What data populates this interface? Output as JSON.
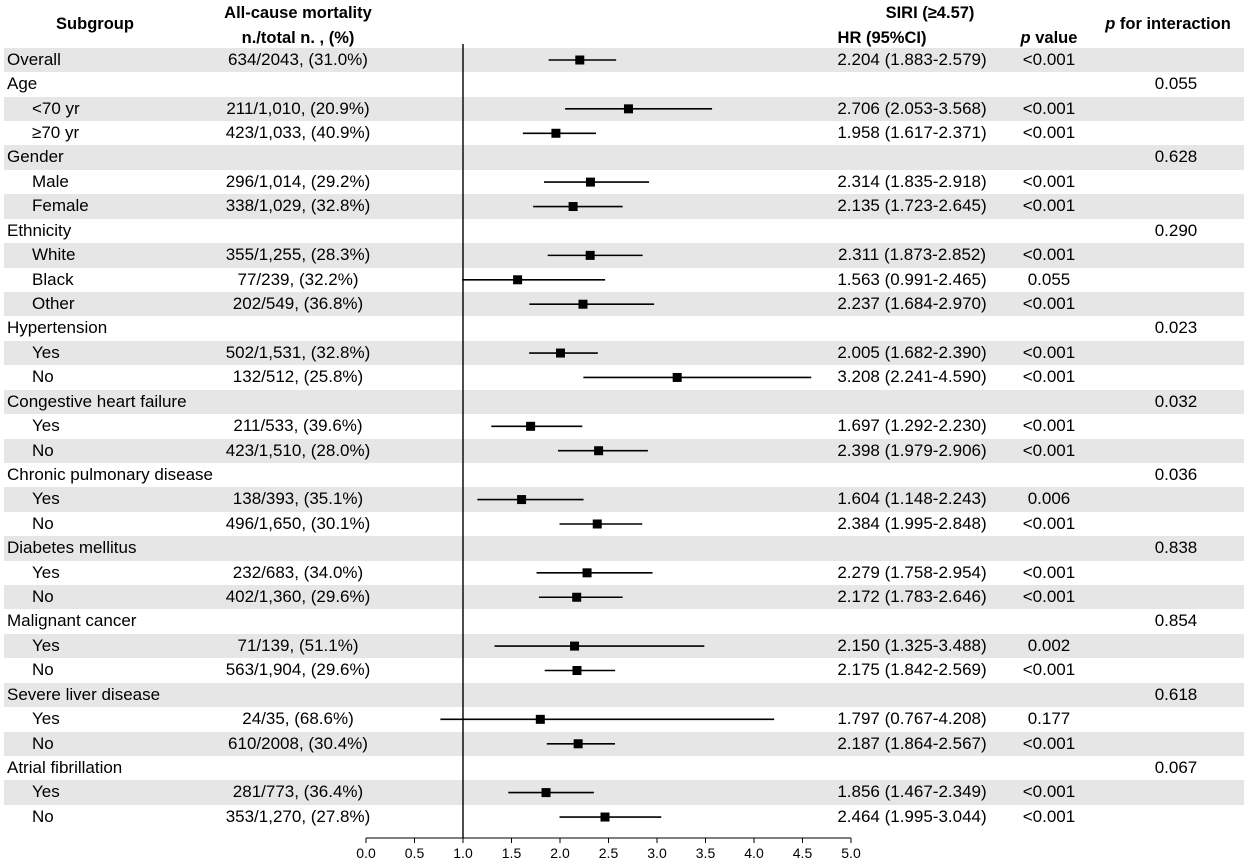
{
  "header": {
    "subgroup": "Subgroup",
    "mortality_title": "All-cause mortality",
    "mortality_subtitle": "n./total n. , (%)",
    "exposure": "SIRI (≥4.57)",
    "hr": "HR (95%CI)",
    "p_symbol": "p",
    "p_value_label": "value",
    "p_interaction_symbol": "p",
    "p_interaction_label": "for interaction"
  },
  "colors": {
    "row_shading": "#e6e6e6",
    "marker": "#000000"
  },
  "chart_data": {
    "type": "scatter",
    "xlim": [
      0,
      5
    ],
    "reference_line": 1.0,
    "x_ticks": [
      "0.0",
      "0.5",
      "1.0",
      "1.5",
      "2.0",
      "2.5",
      "3.0",
      "3.5",
      "4.0",
      "4.5",
      "5.0"
    ],
    "overall": {
      "label": "Overall",
      "events": "634/2043, (31.0%)",
      "hr": 2.204,
      "ci_low": 1.883,
      "ci_high": 2.579,
      "hr_text": "2.204 (1.883-2.579)",
      "p": "<0.001"
    },
    "groups": [
      {
        "label": "Age",
        "p_interaction": "0.055",
        "subgroups": [
          {
            "label": "<70 yr",
            "events": "211/1,010, (20.9%)",
            "hr": 2.706,
            "ci_low": 2.053,
            "ci_high": 3.568,
            "hr_text": "2.706 (2.053-3.568)",
            "p": "<0.001"
          },
          {
            "label": "≥70 yr",
            "events": "423/1,033, (40.9%)",
            "hr": 1.958,
            "ci_low": 1.617,
            "ci_high": 2.371,
            "hr_text": "1.958 (1.617-2.371)",
            "p": "<0.001"
          }
        ]
      },
      {
        "label": "Gender",
        "p_interaction": "0.628",
        "subgroups": [
          {
            "label": "Male",
            "events": "296/1,014, (29.2%)",
            "hr": 2.314,
            "ci_low": 1.835,
            "ci_high": 2.918,
            "hr_text": "2.314 (1.835-2.918)",
            "p": "<0.001"
          },
          {
            "label": "Female",
            "events": "338/1,029, (32.8%)",
            "hr": 2.135,
            "ci_low": 1.723,
            "ci_high": 2.645,
            "hr_text": "2.135 (1.723-2.645)",
            "p": "<0.001"
          }
        ]
      },
      {
        "label": "Ethnicity",
        "p_interaction": "0.290",
        "subgroups": [
          {
            "label": "White",
            "events": "355/1,255, (28.3%)",
            "hr": 2.311,
            "ci_low": 1.873,
            "ci_high": 2.852,
            "hr_text": "2.311 (1.873-2.852)",
            "p": "<0.001"
          },
          {
            "label": "Black",
            "events": "77/239, (32.2%)",
            "hr": 1.563,
            "ci_low": 0.991,
            "ci_high": 2.465,
            "hr_text": "1.563 (0.991-2.465)",
            "p": "0.055"
          },
          {
            "label": "Other",
            "events": "202/549, (36.8%)",
            "hr": 2.237,
            "ci_low": 1.684,
            "ci_high": 2.97,
            "hr_text": "2.237 (1.684-2.970)",
            "p": "<0.001"
          }
        ]
      },
      {
        "label": "Hypertension",
        "p_interaction": "0.023",
        "subgroups": [
          {
            "label": "Yes",
            "events": "502/1,531, (32.8%)",
            "hr": 2.005,
            "ci_low": 1.682,
            "ci_high": 2.39,
            "hr_text": "2.005 (1.682-2.390)",
            "p": "<0.001"
          },
          {
            "label": "No",
            "events": "132/512, (25.8%)",
            "hr": 3.208,
            "ci_low": 2.241,
            "ci_high": 4.59,
            "hr_text": "3.208 (2.241-4.590)",
            "p": "<0.001"
          }
        ]
      },
      {
        "label": "Congestive heart failure",
        "p_interaction": "0.032",
        "subgroups": [
          {
            "label": "Yes",
            "events": "211/533, (39.6%)",
            "hr": 1.697,
            "ci_low": 1.292,
            "ci_high": 2.23,
            "hr_text": "1.697 (1.292-2.230)",
            "p": "<0.001"
          },
          {
            "label": "No",
            "events": "423/1,510, (28.0%)",
            "hr": 2.398,
            "ci_low": 1.979,
            "ci_high": 2.906,
            "hr_text": "2.398 (1.979-2.906)",
            "p": "<0.001"
          }
        ]
      },
      {
        "label": "Chronic pulmonary disease",
        "p_interaction": "0.036",
        "subgroups": [
          {
            "label": "Yes",
            "events": "138/393, (35.1%)",
            "hr": 1.604,
            "ci_low": 1.148,
            "ci_high": 2.243,
            "hr_text": "1.604 (1.148-2.243)",
            "p": "0.006"
          },
          {
            "label": "No",
            "events": "496/1,650, (30.1%)",
            "hr": 2.384,
            "ci_low": 1.995,
            "ci_high": 2.848,
            "hr_text": "2.384 (1.995-2.848)",
            "p": "<0.001"
          }
        ]
      },
      {
        "label": "Diabetes mellitus",
        "p_interaction": "0.838",
        "subgroups": [
          {
            "label": "Yes",
            "events": "232/683, (34.0%)",
            "hr": 2.279,
            "ci_low": 1.758,
            "ci_high": 2.954,
            "hr_text": "2.279 (1.758-2.954)",
            "p": "<0.001"
          },
          {
            "label": "No",
            "events": "402/1,360, (29.6%)",
            "hr": 2.172,
            "ci_low": 1.783,
            "ci_high": 2.646,
            "hr_text": "2.172 (1.783-2.646)",
            "p": "<0.001"
          }
        ]
      },
      {
        "label": "Malignant cancer",
        "p_interaction": "0.854",
        "subgroups": [
          {
            "label": "Yes",
            "events": "71/139, (51.1%)",
            "hr": 2.15,
            "ci_low": 1.325,
            "ci_high": 3.488,
            "hr_text": "2.150 (1.325-3.488)",
            "p": "0.002"
          },
          {
            "label": "No",
            "events": "563/1,904, (29.6%)",
            "hr": 2.175,
            "ci_low": 1.842,
            "ci_high": 2.569,
            "hr_text": "2.175 (1.842-2.569)",
            "p": "<0.001"
          }
        ]
      },
      {
        "label": "Severe liver disease",
        "p_interaction": "0.618",
        "subgroups": [
          {
            "label": "Yes",
            "events": "24/35, (68.6%)",
            "hr": 1.797,
            "ci_low": 0.767,
            "ci_high": 4.208,
            "hr_text": "1.797 (0.767-4.208)",
            "p": "0.177"
          },
          {
            "label": "No",
            "events": "610/2008, (30.4%)",
            "hr": 2.187,
            "ci_low": 1.864,
            "ci_high": 2.567,
            "hr_text": "2.187 (1.864-2.567)",
            "p": "<0.001"
          }
        ]
      },
      {
        "label": "Atrial fibrillation",
        "p_interaction": "0.067",
        "subgroups": [
          {
            "label": "Yes",
            "events": "281/773, (36.4%)",
            "hr": 1.856,
            "ci_low": 1.467,
            "ci_high": 2.349,
            "hr_text": "1.856 (1.467-2.349)",
            "p": "<0.001"
          },
          {
            "label": "No",
            "events": "353/1,270, (27.8%)",
            "hr": 2.464,
            "ci_low": 1.995,
            "ci_high": 3.044,
            "hr_text": "2.464 (1.995-3.044)",
            "p": "<0.001"
          }
        ]
      }
    ]
  }
}
